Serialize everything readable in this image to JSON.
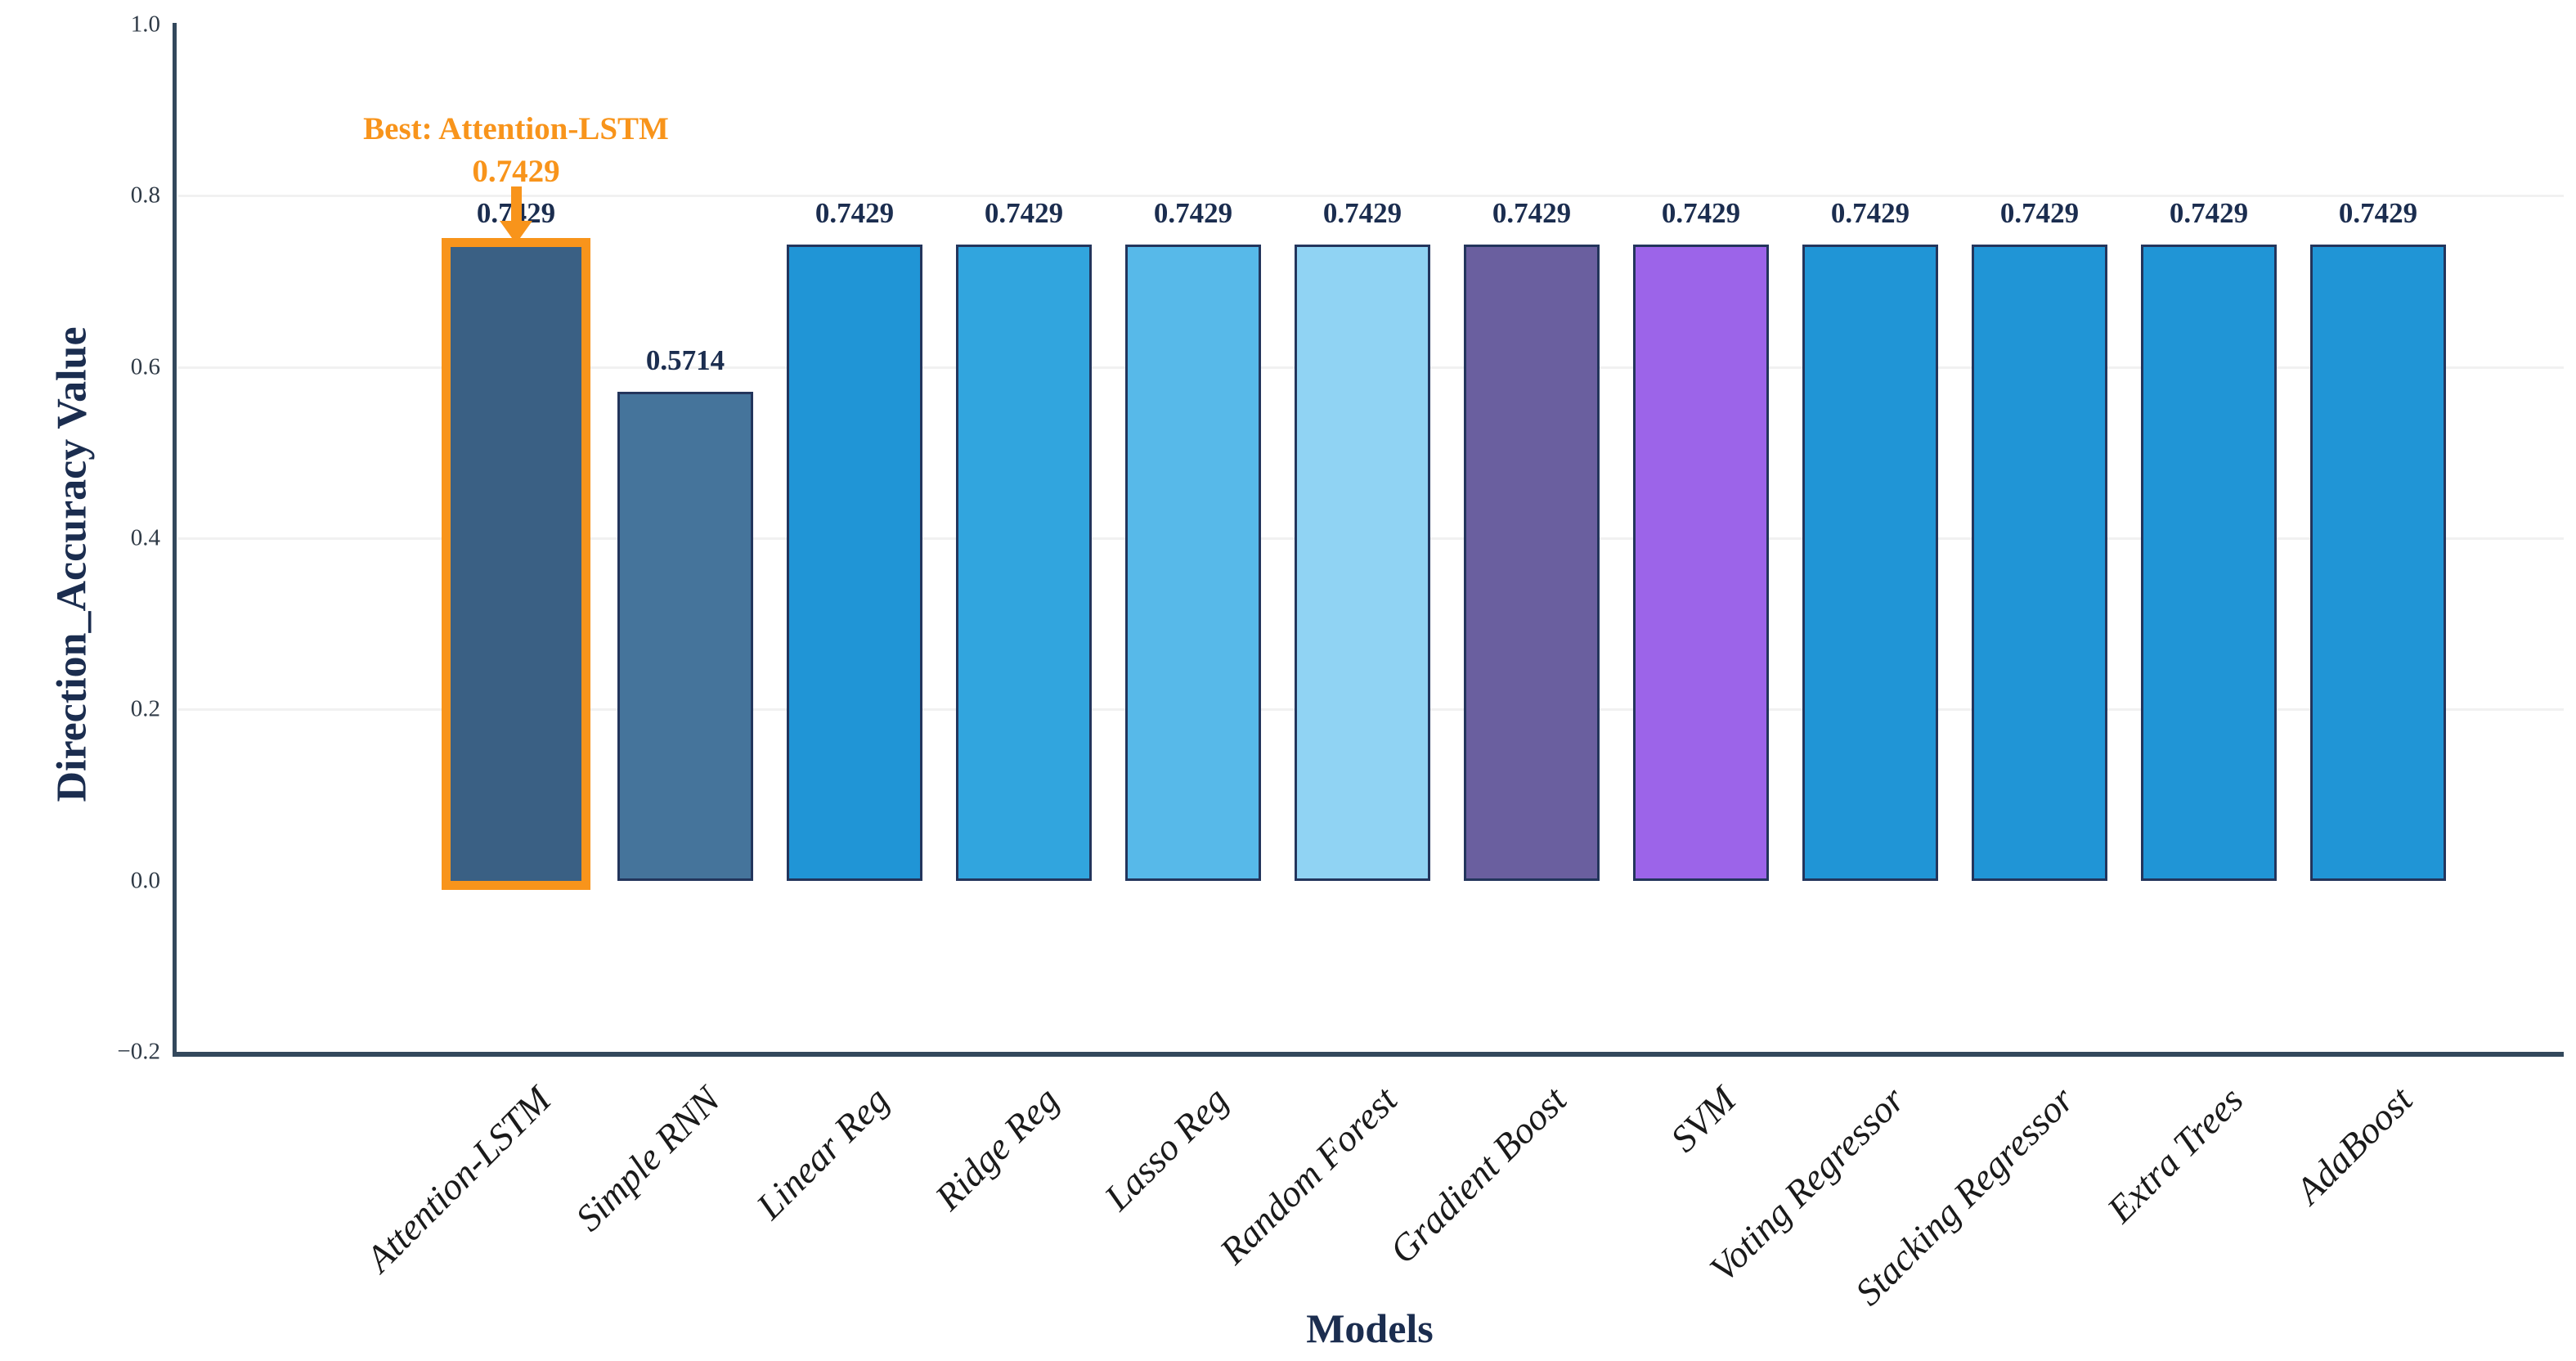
{
  "chart_data": {
    "type": "bar",
    "title": "",
    "xlabel": "Models",
    "ylabel": "Direction_Accuracy Value",
    "ylim": [
      -0.2,
      1.0
    ],
    "grid": "faint-horizontal",
    "legend": "none",
    "categories": [
      "Attention-LSTM",
      "Simple RNN",
      "Linear Reg",
      "Ridge Reg",
      "Lasso Reg",
      "Random Forest",
      "Gradient Boost",
      "SVM",
      "Voting Regressor",
      "Stacking Regressor",
      "Extra Trees",
      "AdaBoost"
    ],
    "values": [
      0.7429,
      0.5714,
      0.7429,
      0.7429,
      0.7429,
      0.7429,
      0.7429,
      0.7429,
      0.7429,
      0.7429,
      0.7429,
      0.7429
    ],
    "value_labels": [
      "0.7429",
      "0.5714",
      "0.7429",
      "0.7429",
      "0.7429",
      "0.7429",
      "0.7429",
      "0.7429",
      "0.7429",
      "0.7429",
      "0.7429",
      "0.7429"
    ],
    "bar_colors": [
      "#3A6084",
      "#45749B",
      "#2095D6",
      "#31A5DE",
      "#57B9E9",
      "#90D3F3",
      "#6A5F9F",
      "#9C64E9",
      "#2095D6",
      "#2095D6",
      "#2095D6",
      "#2095D6"
    ],
    "bar_edge_color": "#23355C",
    "yticks": [
      {
        "label": "1.0",
        "value": 1.0
      },
      {
        "label": "0.8",
        "value": 0.8
      },
      {
        "label": "0.6",
        "value": 0.6
      },
      {
        "label": "0.4",
        "value": 0.4
      },
      {
        "label": "0.2",
        "value": 0.2
      },
      {
        "label": "0.0",
        "value": 0.0
      },
      {
        "label": "−0.2",
        "value": -0.2
      }
    ],
    "gridline_values": [
      0.8,
      0.6,
      0.4,
      0.2
    ],
    "highlight": {
      "index": 0,
      "border_color": "#F8941B",
      "annotation_line1": "Best: Attention-LSTM",
      "annotation_line2": "0.7429",
      "arrow": "down-arrow"
    }
  },
  "colors": {
    "background": "#FFFFFF",
    "value_label_text": "#1B2D4F",
    "axis_title_text": "#1B2D4F",
    "y_tick_text": "#2F3A46",
    "x_tick_text": "#1A1A1A",
    "spine": "#33485C",
    "annotation_orange": "#F8941B",
    "gridline": "#F1F1F1"
  }
}
